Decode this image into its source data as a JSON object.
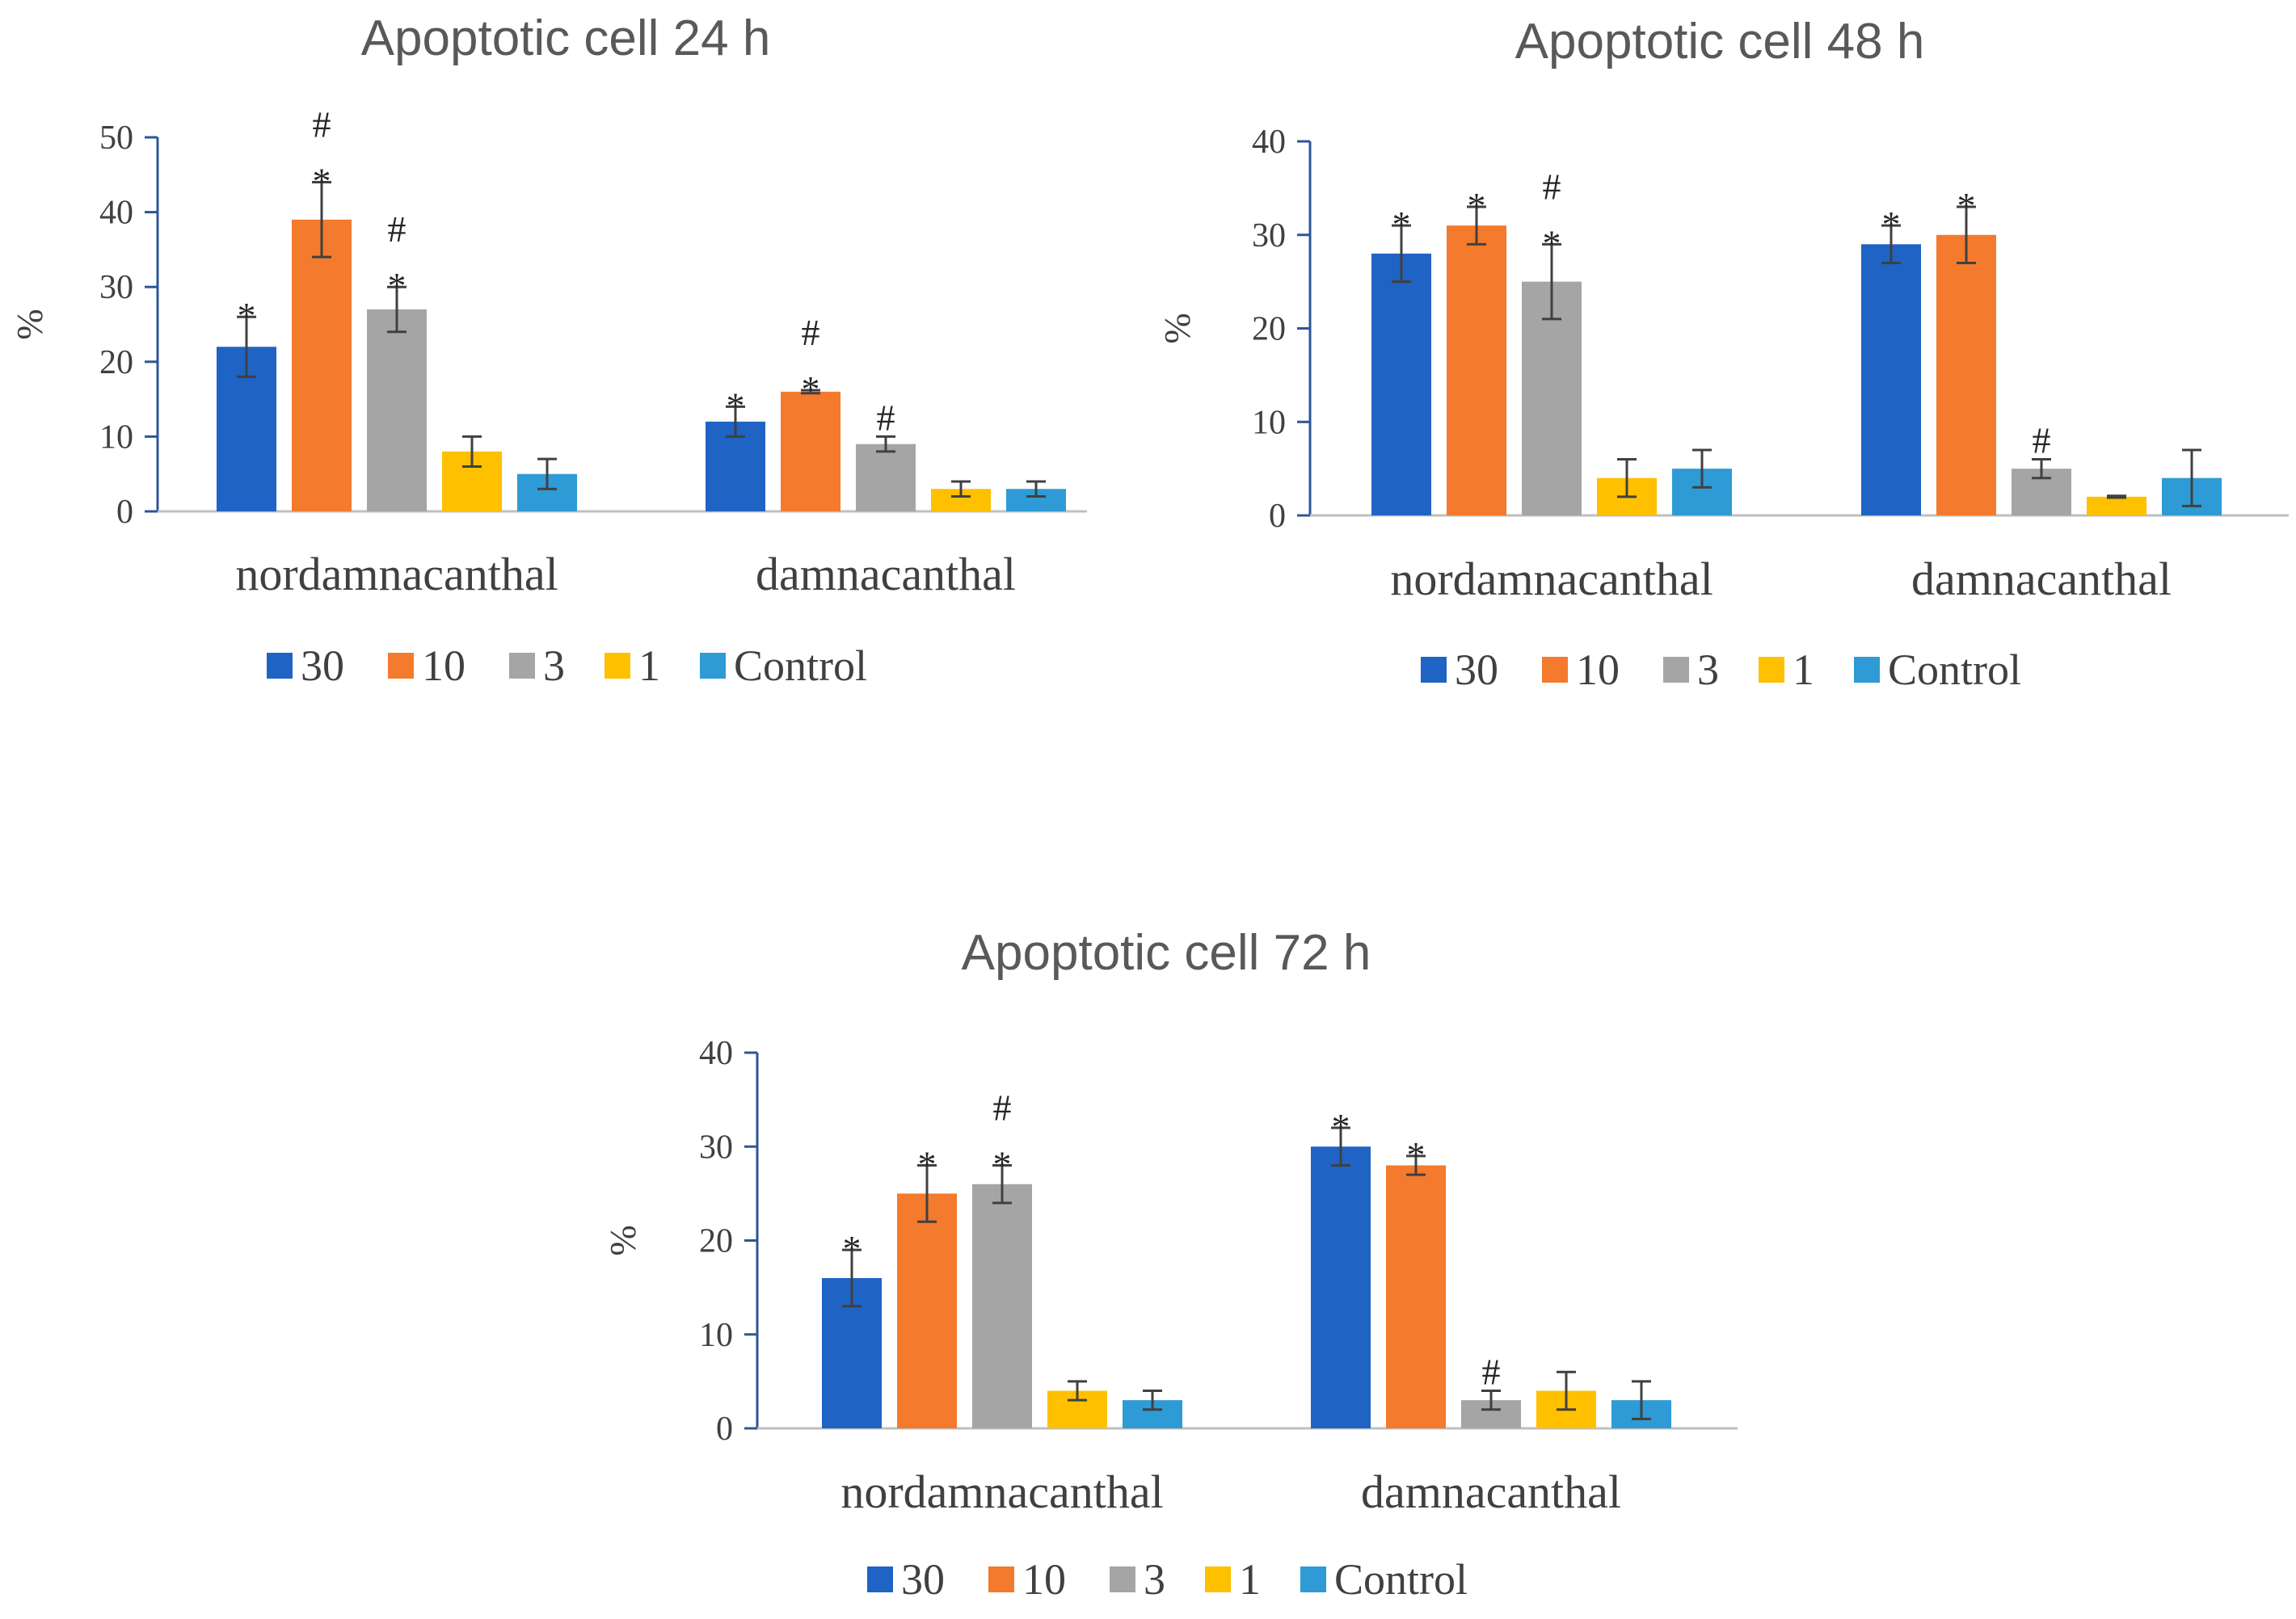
{
  "chart_data": [
    {
      "type": "bar",
      "title": "Apoptotic cell 24 h",
      "ylabel": "%",
      "ylim": [
        0,
        50
      ],
      "yticks": [
        0,
        10,
        20,
        30,
        40,
        50
      ],
      "categories": [
        "nordamnacanthal",
        "damnacanthal"
      ],
      "series": [
        {
          "name": "30",
          "color": "#1F63C4",
          "values": [
            22,
            12
          ],
          "errors": [
            4,
            2
          ],
          "annotations": [
            "*",
            "*"
          ]
        },
        {
          "name": "10",
          "color": "#F47A2D",
          "values": [
            39,
            16
          ],
          "errors": [
            5,
            0.2
          ],
          "annotations": [
            "#\n*",
            "#\n*"
          ]
        },
        {
          "name": "3",
          "color": "#A5A5A5",
          "values": [
            27,
            9
          ],
          "errors": [
            3,
            1
          ],
          "annotations": [
            "#\n*",
            "#"
          ]
        },
        {
          "name": "1",
          "color": "#FFC000",
          "values": [
            8,
            3
          ],
          "errors": [
            2,
            1
          ],
          "annotations": [
            "",
            ""
          ]
        },
        {
          "name": "Control",
          "color": "#2E9BD6",
          "values": [
            5,
            3
          ],
          "errors": [
            2,
            1
          ],
          "annotations": [
            "",
            ""
          ]
        }
      ]
    },
    {
      "type": "bar",
      "title": "Apoptotic cell 48 h",
      "ylabel": "%",
      "ylim": [
        0,
        40
      ],
      "yticks": [
        0,
        10,
        20,
        30,
        40
      ],
      "categories": [
        "nordamnacanthal",
        "damnacanthal"
      ],
      "series": [
        {
          "name": "30",
          "color": "#1F63C4",
          "values": [
            28,
            29
          ],
          "errors": [
            3,
            2
          ],
          "annotations": [
            "*",
            "*"
          ]
        },
        {
          "name": "10",
          "color": "#F47A2D",
          "values": [
            31,
            30
          ],
          "errors": [
            2,
            3
          ],
          "annotations": [
            "*",
            "*"
          ]
        },
        {
          "name": "3",
          "color": "#A5A5A5",
          "values": [
            25,
            5
          ],
          "errors": [
            4,
            1
          ],
          "annotations": [
            "#\n*",
            "#"
          ]
        },
        {
          "name": "1",
          "color": "#FFC000",
          "values": [
            4,
            2
          ],
          "errors": [
            2,
            0.1
          ],
          "annotations": [
            "",
            ""
          ]
        },
        {
          "name": "Control",
          "color": "#2E9BD6",
          "values": [
            5,
            4
          ],
          "errors": [
            2,
            3
          ],
          "annotations": [
            "",
            ""
          ]
        }
      ]
    },
    {
      "type": "bar",
      "title": "Apoptotic cell 72 h",
      "ylabel": "%",
      "ylim": [
        0,
        40
      ],
      "yticks": [
        0,
        10,
        20,
        30,
        40
      ],
      "categories": [
        "nordamnacanthal",
        "damnacanthal"
      ],
      "series": [
        {
          "name": "30",
          "color": "#1F63C4",
          "values": [
            16,
            30
          ],
          "errors": [
            3,
            2
          ],
          "annotations": [
            "*",
            "*"
          ]
        },
        {
          "name": "10",
          "color": "#F47A2D",
          "values": [
            25,
            28
          ],
          "errors": [
            3,
            1
          ],
          "annotations": [
            "*",
            "*"
          ]
        },
        {
          "name": "3",
          "color": "#A5A5A5",
          "values": [
            26,
            3
          ],
          "errors": [
            2,
            1
          ],
          "annotations": [
            "#\n*",
            "#"
          ]
        },
        {
          "name": "1",
          "color": "#FFC000",
          "values": [
            4,
            4
          ],
          "errors": [
            1,
            2
          ],
          "annotations": [
            "",
            ""
          ]
        },
        {
          "name": "Control",
          "color": "#2E9BD6",
          "values": [
            3,
            3
          ],
          "errors": [
            1,
            2
          ],
          "annotations": [
            "",
            ""
          ]
        }
      ]
    }
  ]
}
